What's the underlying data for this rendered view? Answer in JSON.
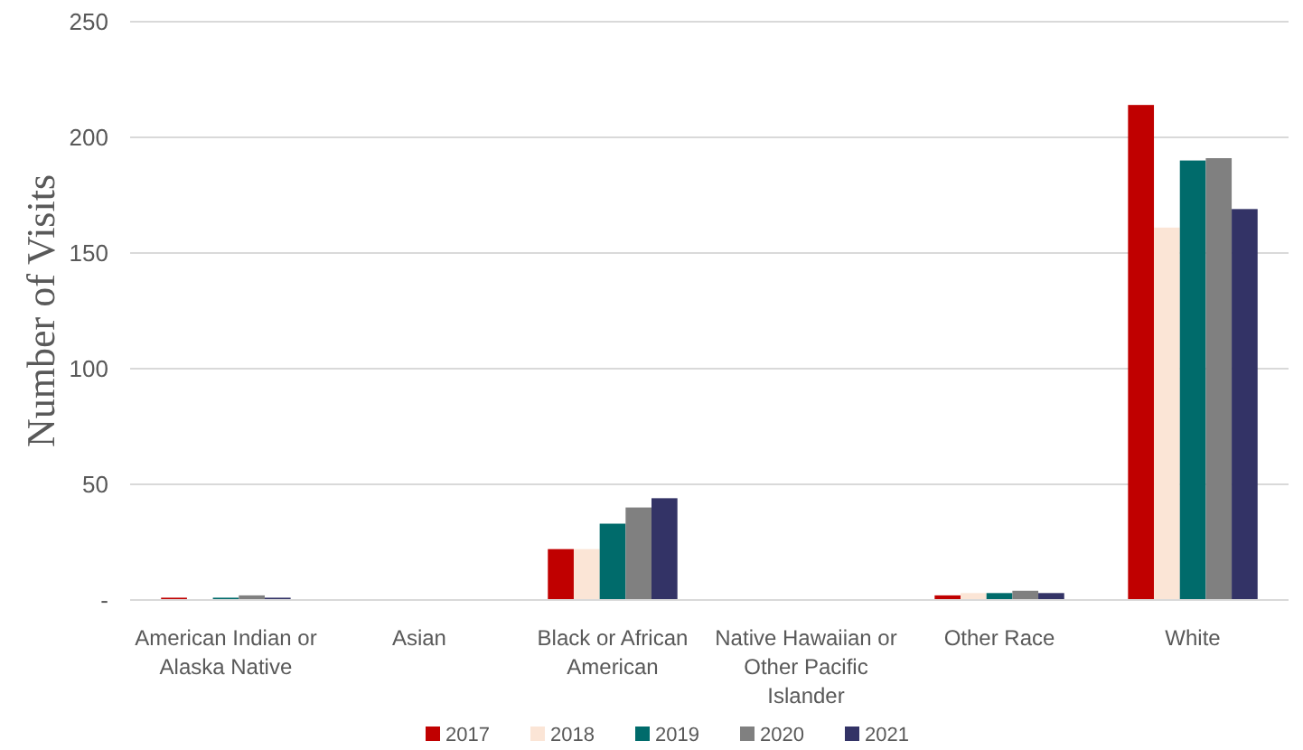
{
  "chart_data": {
    "type": "bar",
    "ylabel": "Number of Visits",
    "categories": [
      "American Indian or Alaska Native",
      "Asian",
      "Black or African American",
      "Native Hawaiian or Other Pacific Islander",
      "Other Race",
      "White"
    ],
    "series": [
      {
        "name": "2017",
        "color": "#c00000",
        "values": [
          1,
          0,
          22,
          0,
          2,
          214
        ]
      },
      {
        "name": "2018",
        "color": "#fbe5d6",
        "values": [
          null,
          null,
          22,
          0,
          3,
          161
        ]
      },
      {
        "name": "2019",
        "color": "#006b6b",
        "values": [
          1,
          null,
          33,
          0,
          3,
          190
        ]
      },
      {
        "name": "2020",
        "color": "#808080",
        "values": [
          2,
          0,
          40,
          0,
          4,
          191
        ]
      },
      {
        "name": "2021",
        "color": "#333366",
        "values": [
          1,
          null,
          44,
          0,
          3,
          169
        ]
      }
    ],
    "ylim": [
      0,
      250
    ],
    "yticks": [
      {
        "value": 0,
        "label": "-"
      },
      50,
      100,
      150,
      200,
      250
    ],
    "grid": "y",
    "legend": "bottom"
  }
}
